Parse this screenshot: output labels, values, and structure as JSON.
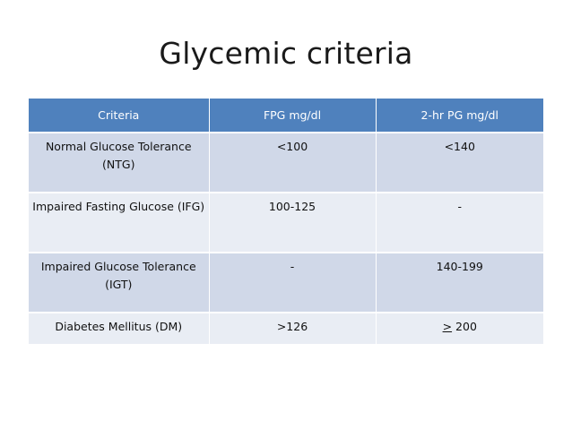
{
  "slide": {
    "title": "Glycemic criteria"
  },
  "table": {
    "headers": {
      "criteria": "Criteria",
      "fpg": "FPG mg/dl",
      "pg2hr": "2-hr PG mg/dl"
    },
    "rows": [
      {
        "criteria": "Normal Glucose Tolerance (NTG)",
        "fpg": "<100",
        "pg2hr": "<140"
      },
      {
        "criteria": "Impaired Fasting Glucose (IFG)",
        "fpg": "100-125",
        "pg2hr": "-"
      },
      {
        "criteria": "Impaired Glucose Tolerance (IGT)",
        "fpg": "-",
        "pg2hr": "140-199"
      },
      {
        "criteria": "Diabetes Mellitus (DM)",
        "fpg": ">126",
        "pg2hr_symbol": ">",
        "pg2hr_value": " 200"
      }
    ],
    "colors": {
      "header_bg": "#4f81bd",
      "row_bg_odd": "#d0d8e8",
      "row_bg_even": "#e9edf4"
    }
  }
}
